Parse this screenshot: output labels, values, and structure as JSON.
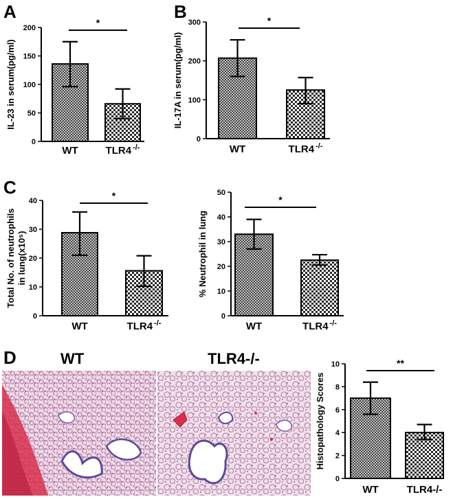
{
  "panel_labels": {
    "a": "A",
    "b": "B",
    "c": "C",
    "d": "D"
  },
  "histology": {
    "left_title": "WT",
    "right_title": "TLR4-/-",
    "colors": {
      "tissue": "#c98fb4",
      "alveoli": "#eedbe6",
      "nuclei": "#5b4a97",
      "blood": "#d8304c"
    }
  },
  "colors": {
    "bar_fill_dark": "#4a4a4a",
    "bar_fill_light": "#ffffff",
    "axis": "#000000"
  },
  "chart_data": [
    {
      "type": "bar",
      "panel": "A",
      "categories": [
        "WT",
        "TLR4"
      ],
      "category_superscripts": [
        "",
        "-/-"
      ],
      "values": [
        136,
        66
      ],
      "error": [
        [
          96,
          175
        ],
        [
          40,
          92
        ]
      ],
      "ylabel": "IL-23 in serum(pg/ml)",
      "ylim": [
        0,
        200
      ],
      "yticks": [
        0,
        50,
        100,
        150,
        200
      ],
      "significance": "*",
      "patterns": [
        "grid",
        "checker"
      ]
    },
    {
      "type": "bar",
      "panel": "B",
      "categories": [
        "WT",
        "TLR4"
      ],
      "category_superscripts": [
        "",
        "-/-"
      ],
      "values": [
        207,
        125
      ],
      "error": [
        [
          160,
          254
        ],
        [
          90,
          157
        ]
      ],
      "ylabel": "IL-17A in serum(pg/ml)",
      "ylim": [
        0,
        300
      ],
      "yticks": [
        0,
        100,
        200,
        300
      ],
      "significance": "*",
      "patterns": [
        "grid",
        "checker"
      ]
    },
    {
      "type": "bar",
      "panel": "C-left",
      "categories": [
        "WT",
        "TLR4"
      ],
      "category_superscripts": [
        "",
        "-/-"
      ],
      "values": [
        28.8,
        15.6
      ],
      "error": [
        [
          21,
          36
        ],
        [
          10.2,
          20.8
        ]
      ],
      "ylabel_lines": [
        "Total No. of neutrophils",
        "in lung(x10⁵)"
      ],
      "ylim": [
        0,
        40
      ],
      "yticks": [
        0,
        10,
        20,
        30,
        40
      ],
      "significance": "*",
      "patterns": [
        "grid",
        "checker"
      ]
    },
    {
      "type": "bar",
      "panel": "C-right",
      "categories": [
        "WT",
        "TLR4"
      ],
      "category_superscripts": [
        "",
        "-/-"
      ],
      "values": [
        33,
        22.5
      ],
      "error": [
        [
          27,
          39
        ],
        [
          20.5,
          24.7
        ]
      ],
      "ylabel": "% Neutrophil in lung",
      "ylim": [
        0,
        50
      ],
      "yticks": [
        0,
        10,
        20,
        30,
        40,
        50
      ],
      "significance": "*",
      "patterns": [
        "grid",
        "checker"
      ]
    },
    {
      "type": "bar",
      "panel": "D",
      "categories": [
        "WT",
        "TLR4-/-"
      ],
      "category_superscripts": [
        "",
        ""
      ],
      "values": [
        7,
        4
      ],
      "error": [
        [
          5.6,
          8.4
        ],
        [
          3.4,
          4.7
        ]
      ],
      "ylabel": "Histopathology Scores",
      "ylim": [
        0,
        10
      ],
      "yticks": [
        0,
        2,
        4,
        6,
        8,
        10
      ],
      "significance": "**",
      "patterns": [
        "grid",
        "checker"
      ]
    }
  ]
}
